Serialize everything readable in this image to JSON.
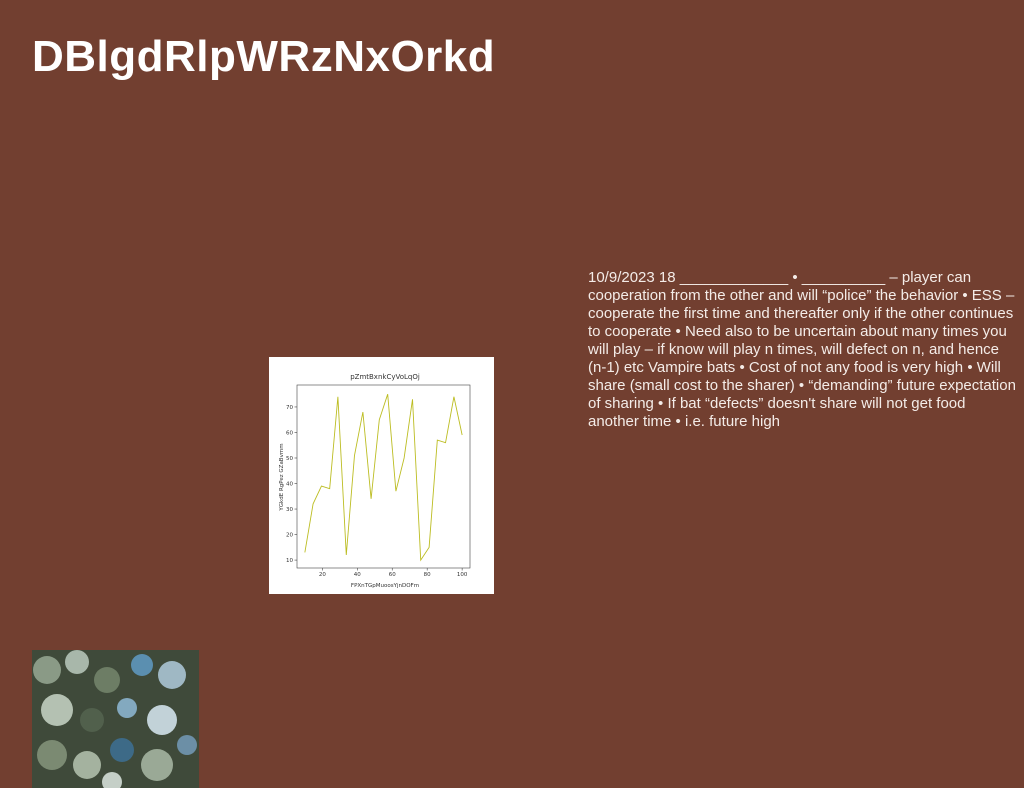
{
  "header": {
    "title": "DBlgdRlpWRzNxOrkd"
  },
  "body": {
    "text": "10/9/2023 18 _____________ • __________ – player can cooperation from the other  and will “police” the behavior • ESS – cooperate the first time and thereafter only if the other continues to cooperate • Need also to be uncertain about many times you will play – if know will play n times, will defect on n, and hence (n-1) etc Vampire bats • Cost of not any food is very  high • Will share (small cost to the sharer) • “demanding” future expectation of sharing • If bat “defects” doesn't share will not get food another time • i.e. future high"
  },
  "chart_data": {
    "type": "line",
    "title": "pZmtBxnkCyVoLqOj",
    "x_label": "FPXnTGpMuoosYjnDOFm",
    "y_label": "YGkdE RgPez GZaBvmm",
    "x": [
      10,
      14.7,
      19.5,
      24.2,
      28.9,
      33.7,
      38.4,
      43.2,
      47.9,
      52.6,
      57.4,
      62.1,
      66.8,
      71.6,
      76.3,
      81.1,
      85.8,
      90.5,
      95.3,
      100
    ],
    "series": [
      {
        "color": "#bcbd22",
        "values": [
          13,
          32,
          39,
          38,
          74,
          12,
          51,
          68,
          34,
          65,
          75,
          37,
          50,
          73,
          10,
          15,
          57,
          56,
          74,
          59
        ]
      }
    ],
    "xlim": [
      5.5,
      104.5
    ],
    "xticks": [
      20,
      40,
      60,
      80,
      100
    ],
    "ylim": [
      6.9,
      78.6
    ],
    "yticks": [
      10,
      20,
      30,
      40,
      50,
      60,
      70
    ]
  }
}
